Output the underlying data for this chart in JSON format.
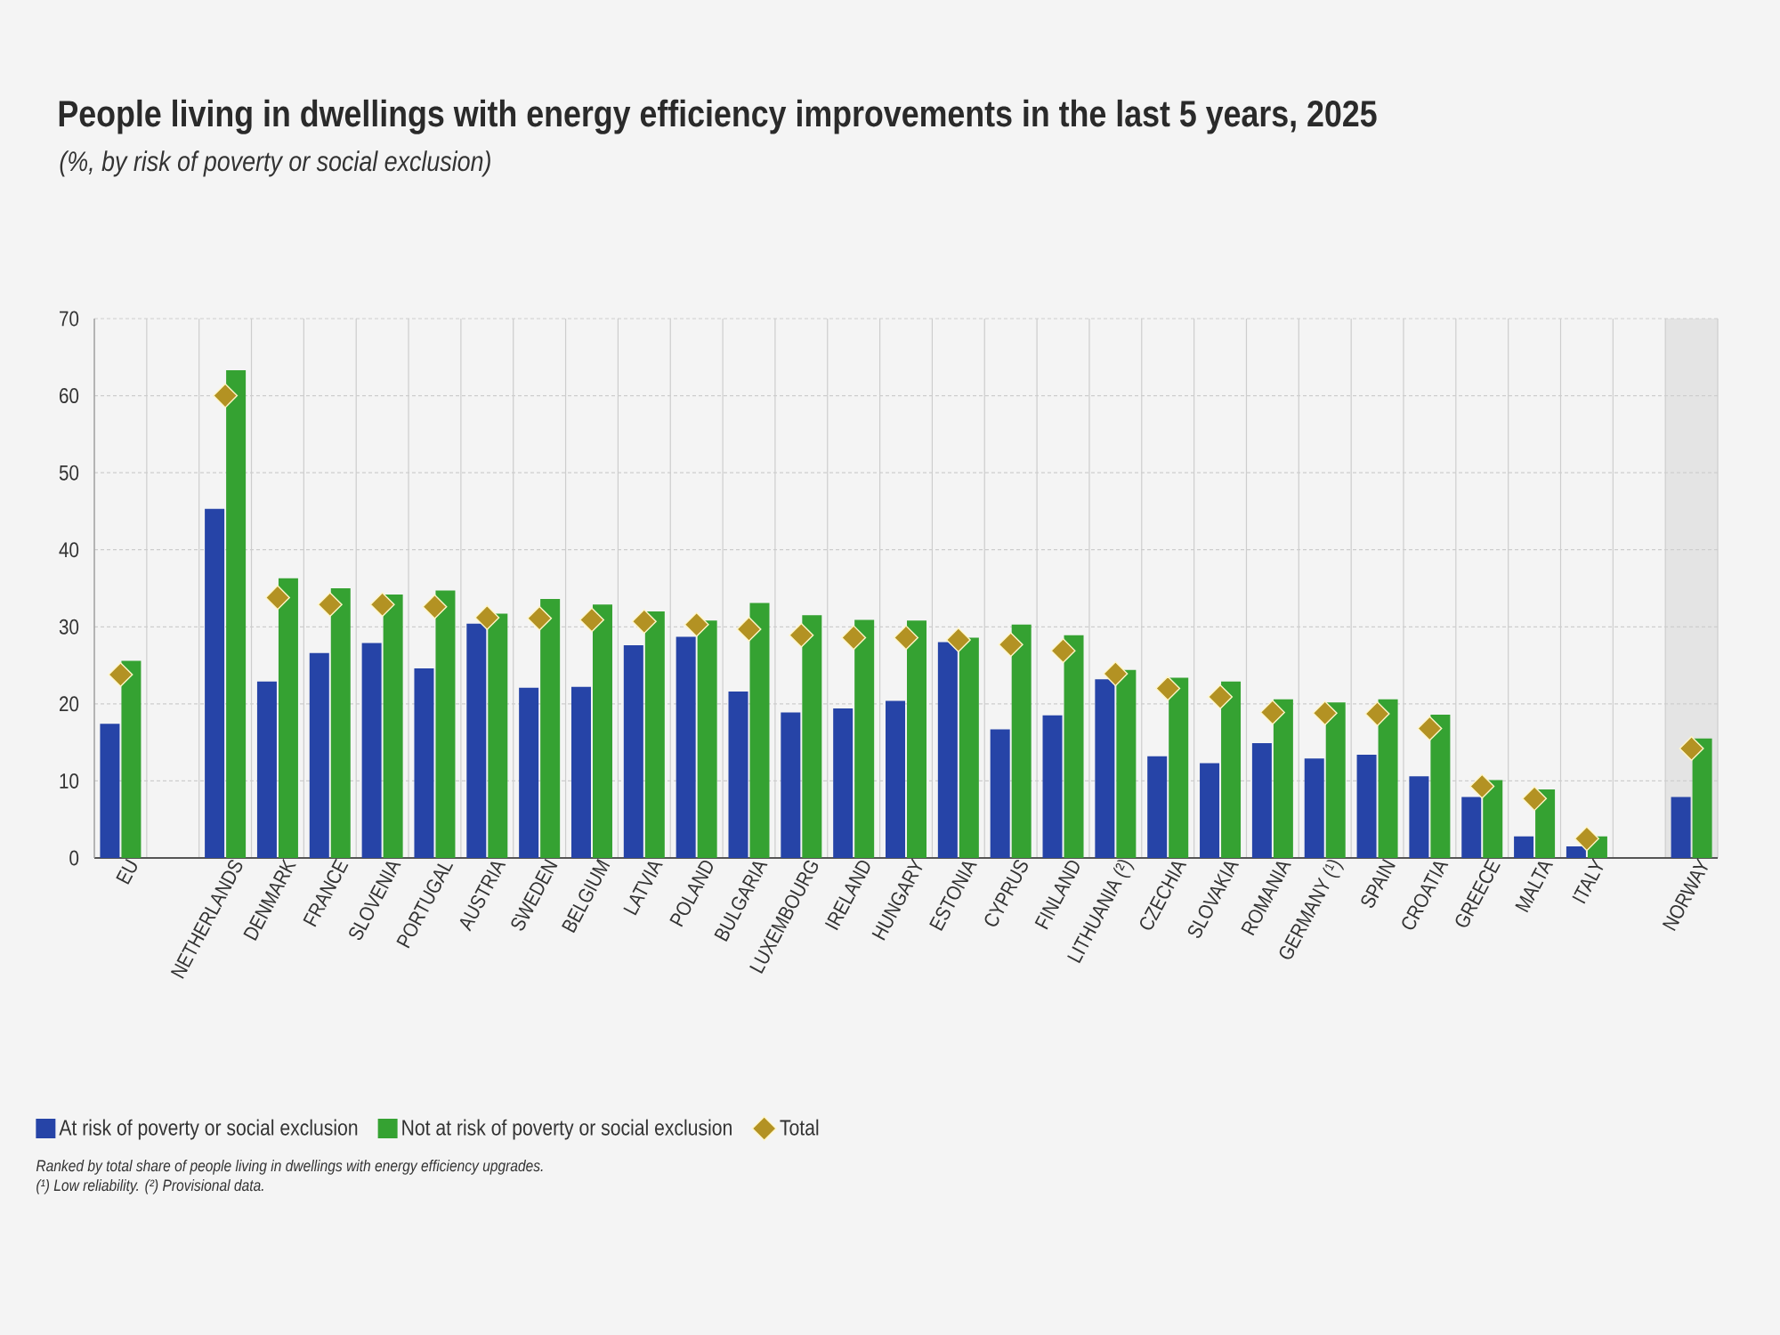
{
  "chart_data": {
    "type": "bar",
    "title": "People living in dwellings with energy efficiency improvements in the last 5 years, 2025",
    "subtitle": "(%, by risk of poverty or social exclusion)",
    "categories": [
      "EU",
      null,
      "NETHERLANDS",
      "DENMARK",
      "FRANCE",
      "SLOVENIA",
      "PORTUGAL",
      "AUSTRIA",
      "SWEDEN",
      "BELGIUM",
      "LATVIA",
      "POLAND",
      "BULGARIA",
      "LUXEMBOURG",
      "IRELAND",
      "HUNGARY",
      "ESTONIA",
      "CYPRUS",
      "FINLAND",
      "LITHUANIA (²)",
      "CZECHIA",
      "SLOVAKIA",
      "ROMANIA",
      "GERMANY (¹)",
      "SPAIN",
      "CROATIA",
      "GREECE",
      "MALTA",
      "ITALY",
      null,
      "NORWAY"
    ],
    "series": [
      {
        "name": "At risk of poverty or social exclusion",
        "color": "#2644a7",
        "values": [
          17.4,
          null,
          45.3,
          22.9,
          26.6,
          27.9,
          24.6,
          30.4,
          22.1,
          22.2,
          27.6,
          28.7,
          21.6,
          18.9,
          19.4,
          20.4,
          28.0,
          16.7,
          18.5,
          23.2,
          13.2,
          12.3,
          14.9,
          12.9,
          13.4,
          10.6,
          7.9,
          2.8,
          1.5,
          null,
          7.9
        ]
      },
      {
        "name": "Not at risk of poverty or social exclusion",
        "color": "#35a232",
        "values": [
          25.6,
          null,
          63.3,
          36.3,
          35.0,
          34.2,
          34.7,
          31.7,
          33.6,
          32.9,
          32.0,
          30.8,
          33.1,
          31.5,
          30.9,
          30.8,
          28.6,
          30.3,
          28.9,
          24.4,
          23.4,
          22.9,
          20.6,
          20.2,
          20.6,
          18.6,
          10.1,
          8.9,
          2.8,
          null,
          15.5
        ]
      },
      {
        "name": "Total",
        "type": "scatter",
        "marker": "diamond",
        "color": "#b39223",
        "values": [
          23.8,
          null,
          60.0,
          33.8,
          32.9,
          32.9,
          32.6,
          31.2,
          31.1,
          30.9,
          30.7,
          30.3,
          29.7,
          28.9,
          28.6,
          28.6,
          28.3,
          27.7,
          26.9,
          23.9,
          22.0,
          20.9,
          18.9,
          18.8,
          18.7,
          16.8,
          9.3,
          7.7,
          2.5,
          null,
          14.2
        ]
      }
    ],
    "ylim": [
      0,
      70
    ],
    "yticks": [
      0,
      10,
      20,
      30,
      40,
      50,
      60,
      70
    ],
    "grid": true,
    "legend": "bottom left",
    "bands": [
      {
        "axis": "x",
        "from": "NORWAY",
        "to": "NORWAY",
        "color": "#e4e4e4"
      }
    ],
    "annotations": [
      "Ranked by total share of people living in dwellings with energy efficiency upgrades.",
      "(¹) Low reliability. (²) Provisional data."
    ]
  }
}
